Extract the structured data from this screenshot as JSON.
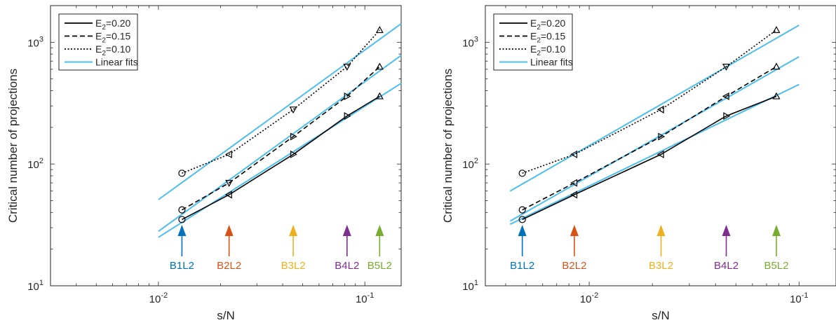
{
  "chart_data": [
    {
      "type": "line",
      "xscale": "log",
      "yscale": "log",
      "xlim": [
        0.003,
        0.15
      ],
      "ylim": [
        10,
        2000
      ],
      "xlabel": "s/N",
      "ylabel": "Critical number of projections",
      "xticks": [
        {
          "v": 0.01,
          "base": "10",
          "exp": "-2"
        },
        {
          "v": 0.1,
          "base": "10",
          "exp": "-1"
        }
      ],
      "yticks": [
        {
          "v": 10,
          "base": "10",
          "exp": "1"
        },
        {
          "v": 100,
          "base": "10",
          "exp": "2"
        },
        {
          "v": 1000,
          "base": "10",
          "exp": "3"
        }
      ],
      "legend_position": "top-left",
      "series": [
        {
          "name": "E2=0.20",
          "name_main": "E",
          "name_sub": "2",
          "name_rest": "=0.20",
          "dash": "solid",
          "color": "#000000",
          "x": [
            0.013,
            0.022,
            0.045,
            0.082,
            0.118
          ],
          "y": [
            35,
            56,
            120,
            248,
            360
          ],
          "markers": [
            "circle",
            "tri-left",
            "tri-right",
            "tri-right",
            "tri-up"
          ]
        },
        {
          "name": "E2=0.15",
          "name_main": "E",
          "name_sub": "2",
          "name_rest": "=0.15",
          "dash": "dashed",
          "color": "#000000",
          "x": [
            0.013,
            0.022,
            0.045,
            0.082,
            0.118
          ],
          "y": [
            42,
            70,
            168,
            360,
            630
          ],
          "markers": [
            "circle",
            "tri-down",
            "tri-right",
            "tri-right",
            "tri-up"
          ]
        },
        {
          "name": "E2=0.10",
          "name_main": "E",
          "name_sub": "2",
          "name_rest": "=0.10",
          "dash": "dotted",
          "color": "#000000",
          "x": [
            0.013,
            0.022,
            0.045,
            0.082,
            0.118
          ],
          "y": [
            84,
            120,
            280,
            630,
            1260
          ],
          "markers": [
            "circle",
            "tri-left",
            "tri-down",
            "tri-down",
            "tri-up"
          ]
        },
        {
          "name": "Linear fits",
          "dash": "solid",
          "color": "#4DBEEE",
          "legend_only": true,
          "x": [],
          "y": []
        }
      ],
      "fits": [
        {
          "x": [
            0.01,
            0.15
          ],
          "y": [
            25,
            460
          ]
        },
        {
          "x": [
            0.01,
            0.15
          ],
          "y": [
            28,
            780
          ]
        },
        {
          "x": [
            0.01,
            0.15
          ],
          "y": [
            51,
            1420
          ]
        }
      ],
      "annotations": [
        {
          "label": "B1L2",
          "x": 0.013,
          "color": "#0072BD"
        },
        {
          "label": "B2L2",
          "x": 0.022,
          "color": "#D95319"
        },
        {
          "label": "B3L2",
          "x": 0.045,
          "color": "#EDB120"
        },
        {
          "label": "B4L2",
          "x": 0.082,
          "color": "#7E2F8E"
        },
        {
          "label": "B5L2",
          "x": 0.118,
          "color": "#77AC30"
        }
      ]
    },
    {
      "type": "line",
      "xscale": "log",
      "yscale": "log",
      "xlim": [
        0.0032,
        0.15
      ],
      "ylim": [
        10,
        2000
      ],
      "xlabel": "s/N",
      "ylabel": "Critical number of projections",
      "xticks": [
        {
          "v": 0.01,
          "base": "10",
          "exp": "-2"
        },
        {
          "v": 0.1,
          "base": "10",
          "exp": "-1"
        }
      ],
      "yticks": [
        {
          "v": 10,
          "base": "10",
          "exp": "1"
        },
        {
          "v": 100,
          "base": "10",
          "exp": "2"
        },
        {
          "v": 1000,
          "base": "10",
          "exp": "3"
        }
      ],
      "legend_position": "top-left",
      "series": [
        {
          "name": "E2=0.20",
          "name_main": "E",
          "name_sub": "2",
          "name_rest": "=0.20",
          "dash": "solid",
          "color": "#000000",
          "x": [
            0.0048,
            0.0085,
            0.022,
            0.045,
            0.078
          ],
          "y": [
            35,
            56,
            120,
            248,
            360
          ],
          "markers": [
            "circle",
            "tri-left",
            "tri-left",
            "tri-right",
            "tri-up"
          ]
        },
        {
          "name": "E2=0.15",
          "name_main": "E",
          "name_sub": "2",
          "name_rest": "=0.15",
          "dash": "dashed",
          "color": "#000000",
          "x": [
            0.0048,
            0.0085,
            0.022,
            0.045,
            0.078
          ],
          "y": [
            42,
            70,
            168,
            360,
            630
          ],
          "markers": [
            "circle",
            "tri-left",
            "tri-right",
            "tri-left",
            "tri-up"
          ]
        },
        {
          "name": "E2=0.10",
          "name_main": "E",
          "name_sub": "2",
          "name_rest": "=0.10",
          "dash": "dotted",
          "color": "#000000",
          "x": [
            0.0048,
            0.0085,
            0.022,
            0.045,
            0.078
          ],
          "y": [
            84,
            120,
            280,
            630,
            1260
          ],
          "markers": [
            "circle",
            "tri-left",
            "tri-left",
            "tri-down",
            "tri-up"
          ]
        },
        {
          "name": "Linear fits",
          "dash": "solid",
          "color": "#4DBEEE",
          "legend_only": true,
          "x": [],
          "y": []
        }
      ],
      "fits": [
        {
          "x": [
            0.0042,
            0.1
          ],
          "y": [
            32,
            450
          ]
        },
        {
          "x": [
            0.0042,
            0.1
          ],
          "y": [
            34,
            760
          ]
        },
        {
          "x": [
            0.0042,
            0.1
          ],
          "y": [
            60,
            1380
          ]
        }
      ],
      "annotations": [
        {
          "label": "B1L2",
          "x": 0.0048,
          "color": "#0072BD"
        },
        {
          "label": "B2L2",
          "x": 0.0085,
          "color": "#D95319"
        },
        {
          "label": "B3L2",
          "x": 0.022,
          "color": "#EDB120"
        },
        {
          "label": "B4L2",
          "x": 0.045,
          "color": "#7E2F8E"
        },
        {
          "label": "B5L2",
          "x": 0.078,
          "color": "#77AC30"
        }
      ]
    }
  ]
}
